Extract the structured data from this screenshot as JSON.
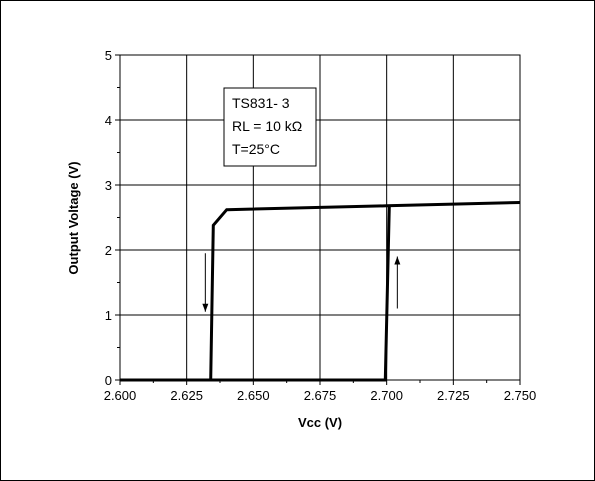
{
  "chart_data": {
    "type": "line",
    "title": "",
    "xlabel": "Vcc (V)",
    "ylabel": "Output Voltage (V)",
    "xlim": [
      2.6,
      2.75
    ],
    "ylim": [
      0,
      5
    ],
    "x_ticks": [
      "2.600",
      "2.625",
      "2.650",
      "2.675",
      "2.700",
      "2.725",
      "2.750"
    ],
    "y_ticks": [
      "0",
      "1",
      "2",
      "3",
      "4",
      "5"
    ],
    "grid": true,
    "annotation": [
      "TS831- 3",
      "RL = 10 kΩ",
      "T=25°C"
    ],
    "series": [
      {
        "values": [
          {
            "x": 2.6,
            "y": 0
          },
          {
            "x": 2.634,
            "y": 0
          },
          {
            "x": 2.635,
            "y": 2.38
          },
          {
            "x": 2.64,
            "y": 2.62
          },
          {
            "x": 2.7,
            "y": 2.68
          },
          {
            "x": 2.75,
            "y": 2.73
          }
        ]
      },
      {
        "values": [
          {
            "x": 2.6,
            "y": 0
          },
          {
            "x": 2.6995,
            "y": 0
          },
          {
            "x": 2.701,
            "y": 2.68
          }
        ]
      }
    ],
    "arrows": [
      {
        "x": 2.632,
        "y_from": 1.95,
        "y_to": 1.05,
        "direction": "down"
      },
      {
        "x": 2.704,
        "y_from": 1.1,
        "y_to": 1.9,
        "direction": "up"
      }
    ]
  }
}
